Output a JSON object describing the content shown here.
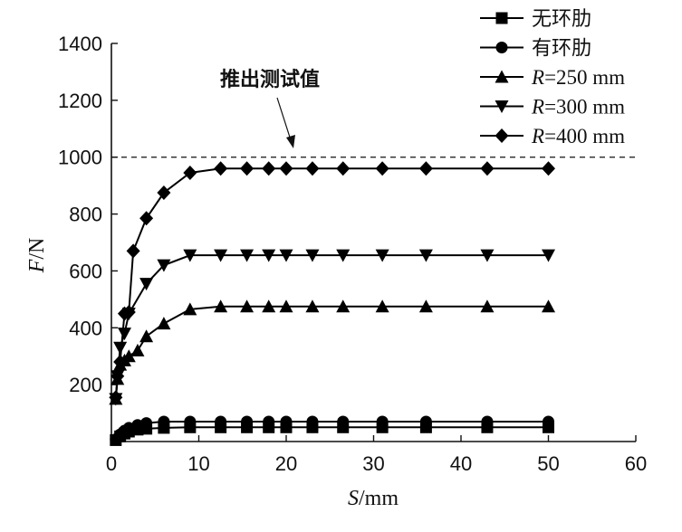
{
  "chart_data": {
    "type": "line",
    "xlabel_var": "S",
    "xlabel_unit": "/mm",
    "ylabel_var": "F",
    "ylabel_unit": "/N",
    "xlim": [
      0,
      60
    ],
    "ylim": [
      0,
      1400
    ],
    "xticks": [
      0,
      10,
      20,
      30,
      40,
      50,
      60
    ],
    "yticks": [
      200,
      400,
      600,
      800,
      1000,
      1200,
      1400
    ],
    "grid": false,
    "legend_position": "top-right",
    "reference_line": {
      "y": 1000,
      "style": "dashed",
      "label": "推出测试值"
    },
    "series": [
      {
        "name": "无环肋",
        "marker": "square",
        "x": [
          0.5,
          1,
          1.5,
          2,
          3,
          4,
          6,
          9,
          12.5,
          15.5,
          18,
          20,
          23,
          26.5,
          31,
          36,
          43,
          50
        ],
        "y": [
          5,
          18,
          28,
          35,
          42,
          45,
          48,
          50,
          50,
          50,
          50,
          50,
          50,
          50,
          50,
          50,
          50,
          50
        ]
      },
      {
        "name": "有环肋",
        "marker": "circle",
        "x": [
          0.5,
          1,
          1.5,
          2,
          3,
          4,
          6,
          9,
          12.5,
          15.5,
          18,
          20,
          23,
          26.5,
          31,
          36,
          43,
          50
        ],
        "y": [
          8,
          25,
          38,
          48,
          58,
          65,
          70,
          70,
          70,
          70,
          70,
          70,
          70,
          70,
          70,
          70,
          70,
          70
        ]
      },
      {
        "label_var": "R",
        "label_rest": "=250 mm",
        "marker": "triangle-up",
        "x": [
          0.5,
          0.7,
          1,
          1.5,
          2,
          3,
          4,
          6,
          9,
          12.5,
          15.5,
          18,
          20,
          23,
          26.5,
          31,
          36,
          43,
          50
        ],
        "y": [
          150,
          220,
          270,
          285,
          300,
          320,
          370,
          415,
          465,
          475,
          475,
          475,
          475,
          475,
          475,
          475,
          475,
          475,
          475
        ]
      },
      {
        "label_var": "R",
        "label_rest": "=300 mm",
        "marker": "triangle-down",
        "x": [
          0.5,
          0.7,
          1,
          1.5,
          2,
          4,
          6,
          9,
          12.5,
          15.5,
          18,
          20,
          23,
          26.5,
          31,
          36,
          43,
          50
        ],
        "y": [
          150,
          230,
          330,
          380,
          450,
          555,
          620,
          655,
          655,
          655,
          655,
          655,
          655,
          655,
          655,
          655,
          655,
          655
        ]
      },
      {
        "label_var": "R",
        "label_rest": "=400 mm",
        "marker": "diamond",
        "x": [
          0.5,
          0.7,
          1,
          1.5,
          2,
          2.5,
          4,
          6,
          9,
          12.5,
          15.5,
          18,
          20,
          23,
          26.5,
          31,
          36,
          43,
          50
        ],
        "y": [
          155,
          230,
          280,
          450,
          455,
          670,
          785,
          875,
          945,
          960,
          960,
          960,
          960,
          960,
          960,
          960,
          960,
          960,
          960
        ]
      }
    ]
  }
}
